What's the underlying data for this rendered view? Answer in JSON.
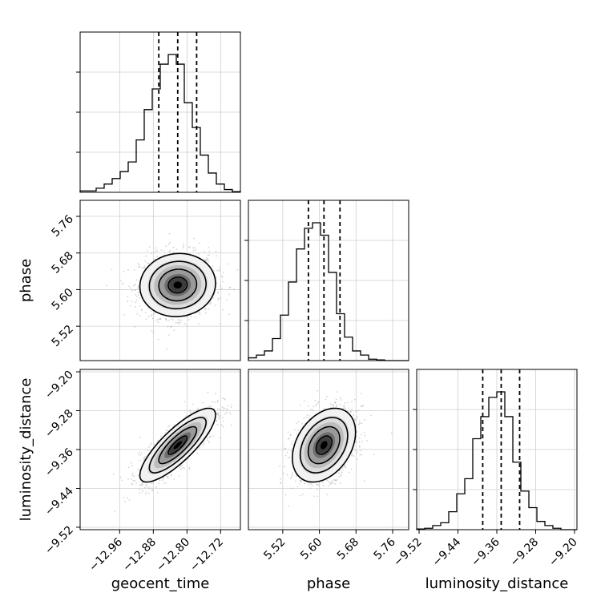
{
  "chart_data": {
    "type": "corner",
    "parameters": [
      "geocent_time",
      "phase",
      "luminosity_distance"
    ],
    "ticks": {
      "geocent_time": [
        -12.96,
        -12.88,
        -12.8,
        -12.72
      ],
      "phase": [
        5.52,
        5.6,
        5.68,
        5.76
      ],
      "luminosity_distance": [
        -9.52,
        -9.44,
        -9.36,
        -9.28,
        -9.2
      ]
    },
    "tick_labels": {
      "geocent_time": [
        "−12.96",
        "−12.88",
        "−12.80",
        "−12.72"
      ],
      "phase": [
        "5.52",
        "5.60",
        "5.68",
        "5.76"
      ],
      "luminosity_distance": [
        "−9.52",
        "−9.44",
        "−9.36",
        "−9.28",
        "−9.20"
      ]
    },
    "ranges": {
      "geocent_time": [
        -13.054,
        -12.673
      ],
      "phase": [
        5.445,
        5.795
      ],
      "luminosity_distance": [
        -9.525,
        -9.195
      ]
    },
    "histograms": {
      "geocent_time": {
        "x_start": -13.054,
        "bin_width": 0.01905,
        "counts": [
          0.01,
          0.01,
          0.03,
          0.06,
          0.1,
          0.15,
          0.22,
          0.38,
          0.6,
          0.75,
          0.93,
          1.0,
          0.93,
          0.65,
          0.47,
          0.27,
          0.14,
          0.06,
          0.02,
          0.005
        ]
      },
      "phase": {
        "x_start": 5.445,
        "bin_width": 0.0175,
        "counts": [
          0.02,
          0.04,
          0.07,
          0.16,
          0.33,
          0.57,
          0.81,
          0.96,
          1.0,
          0.91,
          0.64,
          0.34,
          0.17,
          0.07,
          0.04,
          0.01,
          0.005,
          0.0,
          0.0,
          0.0
        ]
      },
      "luminosity_distance": {
        "x_start": -9.525,
        "bin_width": 0.0165,
        "counts": [
          0.005,
          0.01,
          0.03,
          0.05,
          0.13,
          0.26,
          0.37,
          0.66,
          0.82,
          0.96,
          1.0,
          0.82,
          0.49,
          0.28,
          0.16,
          0.06,
          0.03,
          0.01,
          0.0,
          0.0
        ]
      }
    },
    "quantiles": {
      "geocent_time": [
        -12.867,
        -12.822,
        -12.777
      ],
      "phase": [
        5.576,
        5.61,
        5.645
      ],
      "luminosity_distance": [
        -9.389,
        -9.351,
        -9.313
      ]
    },
    "scatter_colour": "#b0b0b0",
    "contour_colour": "#000000",
    "grid": true
  }
}
